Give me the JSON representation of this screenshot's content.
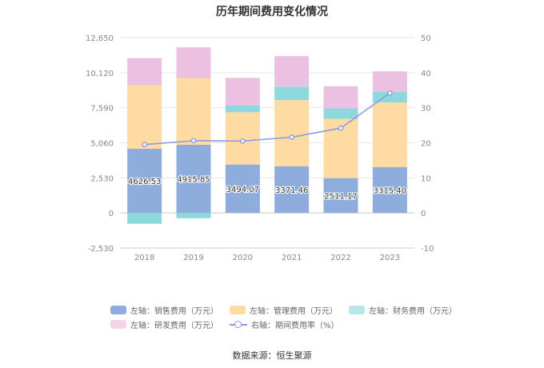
{
  "chart_data": {
    "type": "bar",
    "title": "历年期间费用变化情况",
    "categories": [
      "2018",
      "2019",
      "2020",
      "2021",
      "2022",
      "2023"
    ],
    "left_axis": {
      "ticks": [
        "12,650",
        "10,120",
        "7,590",
        "5,060",
        "2,530",
        "0",
        "-2,530"
      ],
      "ylim": [
        -2530,
        12650
      ]
    },
    "right_axis": {
      "ticks": [
        "50",
        "40",
        "30",
        "20",
        "10",
        "0",
        "-10"
      ],
      "ylim": [
        -10,
        50
      ]
    },
    "series": [
      {
        "name": "左轴：销售费用（万元）",
        "type": "bar",
        "color": "#8eaddc",
        "values": [
          4626.53,
          4915.85,
          3494.07,
          3371.46,
          2511.17,
          3315.4
        ],
        "labels": [
          "4626.53",
          "4915.85",
          "3494.07",
          "3371.46",
          "2511.17",
          "3315.40"
        ]
      },
      {
        "name": "左轴：管理费用（万元）",
        "type": "bar",
        "color": "#fddba3",
        "values": [
          4580,
          4820,
          3770,
          4770,
          4280,
          4650
        ]
      },
      {
        "name": "左轴：财务费用（万元）",
        "type": "bar",
        "color": "#8dd8dc",
        "values": [
          -780,
          -380,
          480,
          970,
          750,
          780
        ]
      },
      {
        "name": "左轴：研发费用（万元）",
        "type": "bar",
        "color": "#ecc0e0",
        "values": [
          1970,
          2210,
          2000,
          2200,
          1600,
          1470
        ]
      },
      {
        "name": "右轴：期间费用率（%）",
        "type": "line",
        "color": "#8c9be6",
        "values": [
          19.5,
          20.6,
          20.5,
          21.6,
          24.2,
          34.2
        ]
      }
    ],
    "legend_position": "bottom",
    "grid": true,
    "source": "数据来源：恒生聚源"
  }
}
